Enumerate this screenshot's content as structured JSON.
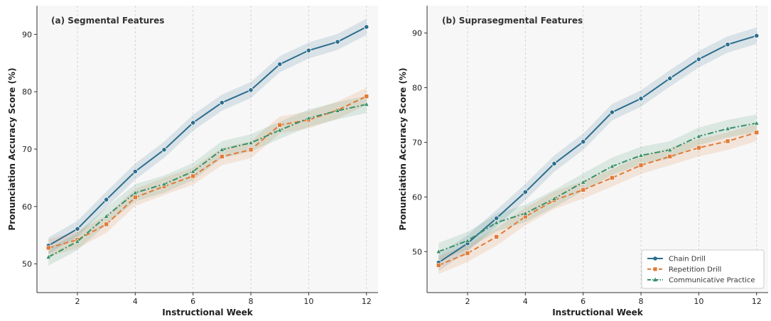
{
  "chart_data": [
    {
      "type": "line",
      "title": "(a) Segmental Features",
      "xlabel": "Instructional Week",
      "ylabel": "Pronunciation Accuracy Score (%)",
      "xlim": [
        0.6,
        12.4
      ],
      "ylim": [
        45,
        95
      ],
      "xticks": [
        "2",
        "4",
        "6",
        "8",
        "10",
        "12"
      ],
      "yticks": [
        "50",
        "60",
        "70",
        "80",
        "90"
      ],
      "grid": "vertical dashed at x ticks",
      "x": [
        1,
        2,
        3,
        4,
        5,
        6,
        7,
        8,
        9,
        10,
        11,
        12
      ],
      "series": [
        {
          "name": "Chain Drill",
          "color": "#2d6e8e",
          "marker": "circle",
          "line": "solid",
          "values": [
            53.2,
            56.1,
            61.2,
            66.1,
            69.9,
            74.6,
            78.1,
            80.3,
            84.8,
            87.2,
            88.7,
            91.3
          ],
          "band": 1.4
        },
        {
          "name": "Repetition Drill",
          "color": "#e07b39",
          "marker": "square",
          "line": "dashed",
          "values": [
            52.8,
            54.2,
            56.9,
            61.6,
            63.5,
            65.3,
            68.7,
            69.9,
            74.2,
            75.1,
            76.8,
            79.2
          ],
          "band": 1.5
        },
        {
          "name": "Communicative Practice",
          "color": "#3a9068",
          "marker": "triangle",
          "line": "dashdot",
          "values": [
            51.2,
            53.9,
            58.3,
            62.4,
            63.9,
            66.1,
            69.9,
            71.1,
            73.3,
            75.4,
            76.7,
            77.8
          ],
          "band": 1.5
        }
      ]
    },
    {
      "type": "line",
      "title": "(b) Suprasegmental Features",
      "xlabel": "Instructional Week",
      "ylabel": "Pronunciation Accuracy Score (%)",
      "xlim": [
        0.6,
        12.4
      ],
      "ylim": [
        42.5,
        95
      ],
      "xticks": [
        "2",
        "4",
        "6",
        "8",
        "10",
        "12"
      ],
      "yticks": [
        "50",
        "60",
        "70",
        "80",
        "90"
      ],
      "grid": "vertical dashed at x ticks",
      "legend": "lower-right",
      "x": [
        1,
        2,
        3,
        4,
        5,
        6,
        7,
        8,
        9,
        10,
        11,
        12
      ],
      "series": [
        {
          "name": "Chain Drill",
          "color": "#2d6e8e",
          "marker": "circle",
          "line": "solid",
          "values": [
            48.0,
            51.5,
            56.1,
            60.9,
            66.1,
            70.1,
            75.5,
            78.0,
            81.7,
            85.2,
            87.9,
            89.5
          ],
          "band": 1.5
        },
        {
          "name": "Repetition Drill",
          "color": "#e07b39",
          "marker": "square",
          "line": "dashed",
          "values": [
            47.5,
            49.7,
            52.7,
            56.4,
            59.4,
            61.3,
            63.5,
            65.8,
            67.4,
            69.0,
            70.2,
            71.8
          ],
          "band": 1.6
        },
        {
          "name": "Communicative Practice",
          "color": "#3a9068",
          "marker": "triangle",
          "line": "dashdot",
          "values": [
            50.0,
            52.0,
            55.3,
            57.0,
            59.7,
            62.7,
            65.6,
            67.6,
            68.6,
            71.1,
            72.5,
            73.5
          ],
          "band": 1.6
        }
      ]
    }
  ]
}
